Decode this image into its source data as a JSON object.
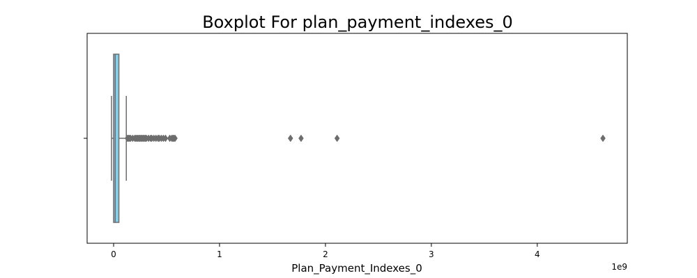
{
  "chart_data": {
    "type": "box",
    "title": "Boxplot For plan_payment_indexes_0",
    "xlabel": "Plan_Payment_Indexes_0",
    "ylabel": "",
    "x_scale_label": "1e9",
    "xlim": [
      -0.25,
      4.85
    ],
    "x_ticks": [
      0,
      1,
      2,
      3,
      4
    ],
    "x_tick_labels": [
      "0",
      "1",
      "2",
      "3",
      "4"
    ],
    "grid": false,
    "legend": "none",
    "box": {
      "whisker_low": -0.02,
      "q1": 0.0,
      "median": 0.015,
      "q3": 0.05,
      "whisker_high": 0.12
    },
    "outliers": [
      0.13,
      0.14,
      0.15,
      0.16,
      0.18,
      0.2,
      0.21,
      0.22,
      0.23,
      0.24,
      0.25,
      0.26,
      0.27,
      0.28,
      0.29,
      0.3,
      0.31,
      0.33,
      0.35,
      0.36,
      0.38,
      0.4,
      0.42,
      0.43,
      0.45,
      0.47,
      0.49,
      0.53,
      0.55,
      0.56,
      0.57,
      0.58,
      1.67,
      1.77,
      2.11,
      4.62
    ],
    "colors": {
      "box_fill": "#87ceeb",
      "line": "#6d6d6d",
      "axis": "#000000"
    }
  }
}
